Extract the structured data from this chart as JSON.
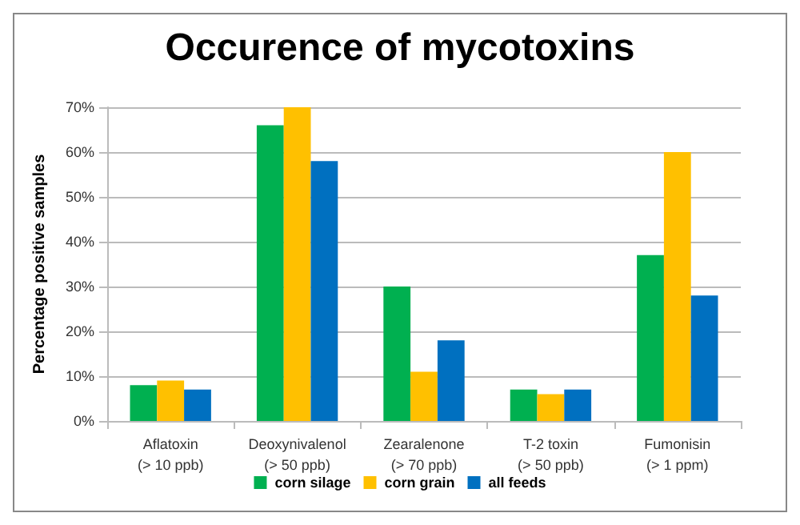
{
  "chart_data": {
    "type": "bar",
    "title": "Occurence of mycotoxins",
    "ylabel": "Percentage positive samples",
    "categories": [
      "Aflatoxin\n(> 10 ppb)",
      "Deoxynivalenol\n(> 50 ppb)",
      "Zearalenone\n(> 70 ppb)",
      "T-2 toxin\n(> 50 ppb)",
      "Fumonisin\n(> 1 ppm)"
    ],
    "series": [
      {
        "name": "corn silage",
        "color": "#00b050",
        "values": [
          8,
          66,
          30,
          7,
          37
        ]
      },
      {
        "name": "corn grain",
        "color": "#ffc000",
        "values": [
          9,
          70,
          11,
          6,
          60
        ]
      },
      {
        "name": "all feeds",
        "color": "#0070c0",
        "values": [
          7,
          58,
          18,
          7,
          28
        ]
      }
    ],
    "ylim": [
      0,
      70
    ],
    "yticks": [
      {
        "value": 0,
        "label": "0%"
      },
      {
        "value": 10,
        "label": "10%"
      },
      {
        "value": 20,
        "label": "20%"
      },
      {
        "value": 30,
        "label": "30%"
      },
      {
        "value": 40,
        "label": "40%"
      },
      {
        "value": 50,
        "label": "50%"
      },
      {
        "value": 60,
        "label": "60%"
      },
      {
        "value": 70,
        "label": "70%"
      }
    ],
    "grid": "y",
    "legend": "bottom"
  }
}
